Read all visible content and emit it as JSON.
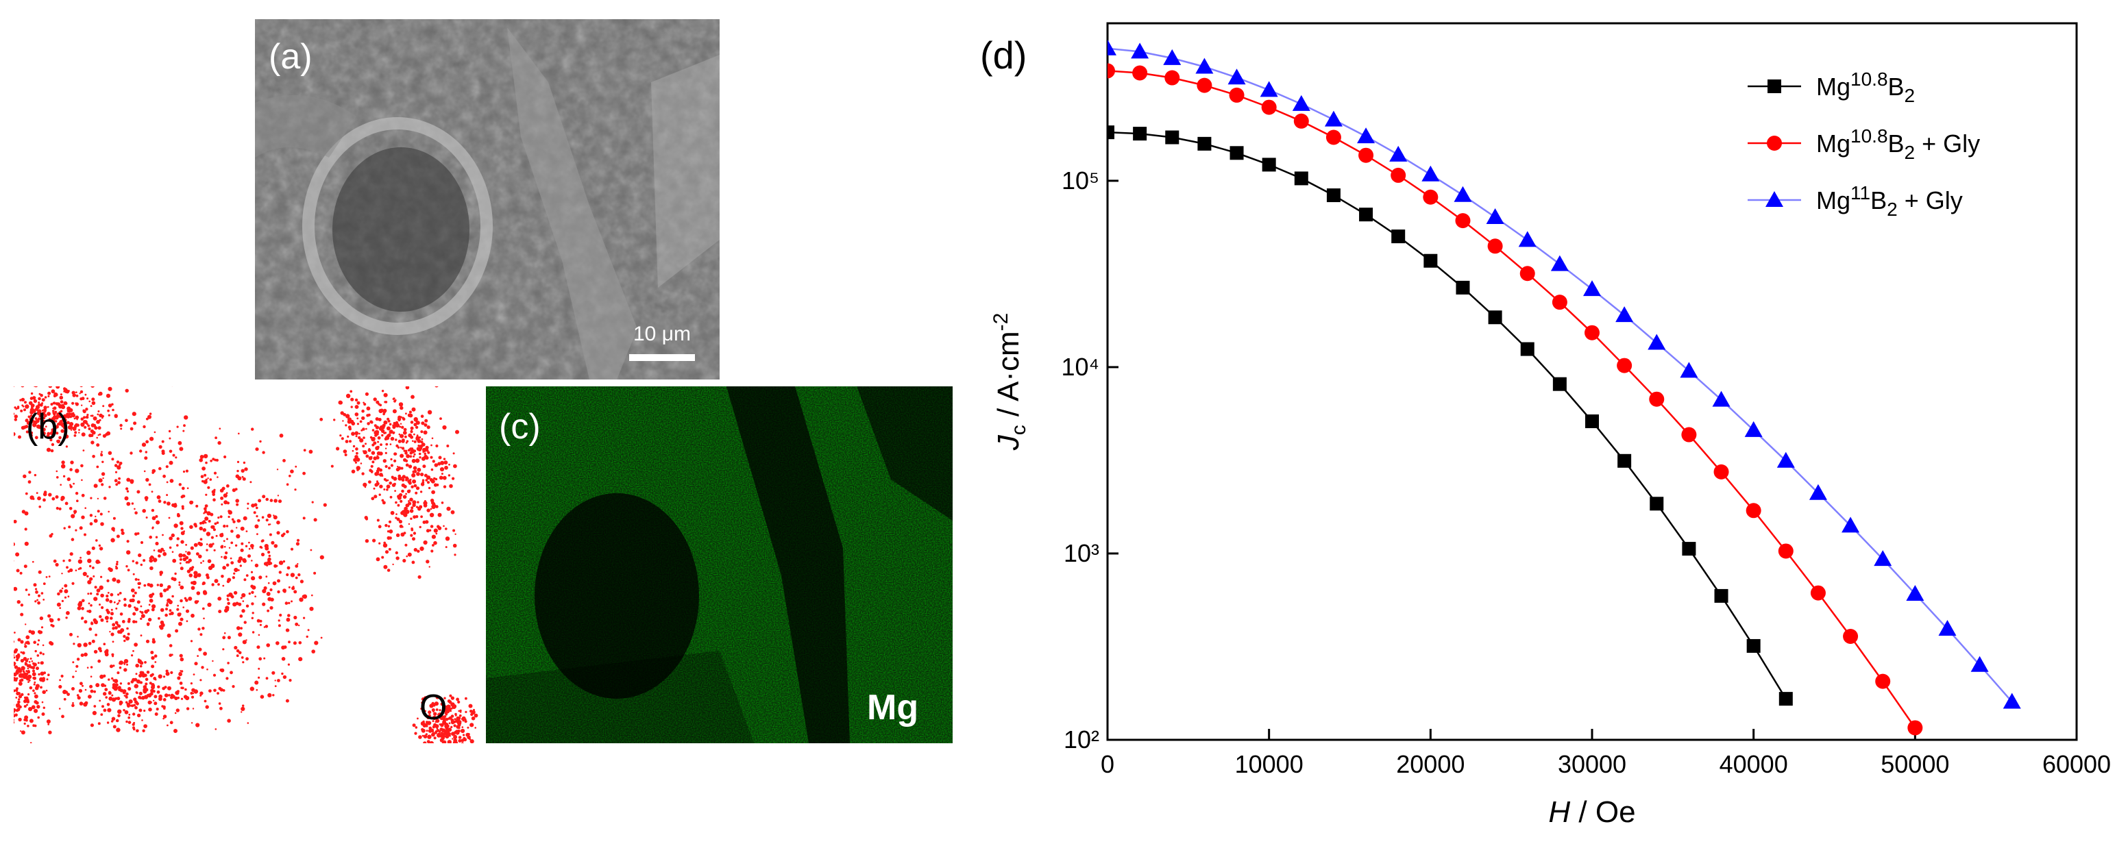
{
  "panels": {
    "a": {
      "label": "(a)",
      "scale_bar": "10 μm"
    },
    "b": {
      "label": "(b)",
      "element": "O"
    },
    "c": {
      "label": "(c)",
      "element": "Mg"
    }
  },
  "chart_data": {
    "type": "line",
    "panel_label": "(d)",
    "x_label": "H / Oe",
    "y_label": "Jc / A·cm-2",
    "xlim": [
      0,
      60000
    ],
    "xticks": [
      0,
      10000,
      20000,
      30000,
      40000,
      50000,
      60000
    ],
    "ylim": [
      100,
      700000
    ],
    "yticks": [
      {
        "value": 100,
        "label": "10²"
      },
      {
        "value": 1000,
        "label": "10³"
      },
      {
        "value": 10000,
        "label": "10⁴"
      },
      {
        "value": 100000,
        "label": "10⁵"
      }
    ],
    "log_y": true,
    "legend": "upper right",
    "series": [
      {
        "name": "Mg10.8B2",
        "color": "#000000",
        "line_color": "#000000",
        "marker": "square",
        "x": [
          0,
          2000,
          4000,
          6000,
          8000,
          10000,
          12000,
          14000,
          16000,
          18000,
          20000,
          22000,
          24000,
          26000,
          28000,
          30000,
          32000,
          34000,
          36000,
          38000,
          40000,
          42000
        ],
        "values": [
          182000,
          179000,
          171000,
          158000,
          141000,
          122000,
          103000,
          83600,
          65900,
          50300,
          37200,
          26700,
          18500,
          12500,
          8110,
          5120,
          3140,
          1850,
          1060,
          592,
          319,
          166
        ]
      },
      {
        "name": "Mg10.8B2 + Gly",
        "color": "#ff0000",
        "line_color": "#ff0000",
        "marker": "circle",
        "x": [
          0,
          2000,
          4000,
          6000,
          8000,
          10000,
          12000,
          14000,
          16000,
          18000,
          20000,
          22000,
          24000,
          26000,
          28000,
          30000,
          32000,
          34000,
          36000,
          38000,
          40000,
          42000,
          44000,
          46000,
          48000,
          50000
        ],
        "values": [
          389000,
          379000,
          357000,
          325000,
          288000,
          248000,
          209000,
          171000,
          137000,
          107000,
          81700,
          61100,
          44600,
          31800,
          22300,
          15300,
          10200,
          6730,
          4340,
          2740,
          1700,
          1030,
          614,
          359,
          206,
          116
        ]
      },
      {
        "name": "Mg11B2 + Gly",
        "color": "#0000ff",
        "line_color": "#8080ff",
        "marker": "triangle",
        "x": [
          0,
          2000,
          4000,
          6000,
          8000,
          10000,
          12000,
          14000,
          16000,
          18000,
          20000,
          22000,
          24000,
          26000,
          28000,
          30000,
          32000,
          34000,
          36000,
          38000,
          40000,
          42000,
          44000,
          46000,
          48000,
          50000,
          52000,
          54000,
          56000
        ],
        "values": [
          513000,
          493000,
          455000,
          409000,
          358000,
          307000,
          258000,
          213000,
          173000,
          138000,
          108000,
          83800,
          63800,
          48100,
          35700,
          26200,
          19000,
          13500,
          9550,
          6680,
          4590,
          3140,
          2110,
          1410,
          933,
          607,
          394,
          252,
          160
        ]
      }
    ]
  }
}
